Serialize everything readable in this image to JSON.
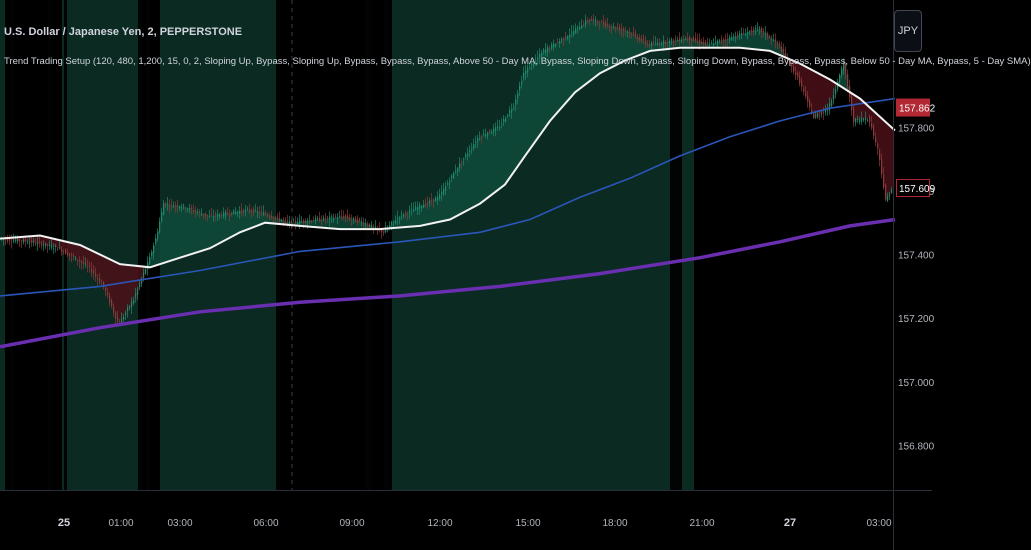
{
  "header": {
    "title": "U.S. Dollar / Japanese Yen, 2, PEPPERSTONE",
    "indicator": "Trend Trading Setup (120, 480, 1,200, 15, 0, 2, Sloping Up, Bypass, Sloping Up, Bypass, Bypass, Bypass, Above 50 - Day MA, Bypass, Sloping Down, Bypass, Sloping Down, Bypass, Bypass, Bypass, Below 50 - Day MA, Bypass, 5 - Day SMA)",
    "currency_button": "JPY"
  },
  "colors": {
    "background": "#000000",
    "green_zone": "#0a2a22",
    "bull_candle": "#1e8a6e",
    "bear_candle": "#8c3a3a",
    "fill_bull": "#0f4a3a",
    "fill_bear": "#4a1118",
    "ma_fast": "#f2f2f2",
    "ma_mid": "#2a56b8",
    "ma_slow": "#6a2fb0",
    "price_tag": "#b22833"
  },
  "chart_data": {
    "type": "line",
    "ylim": [
      156.66,
      158.2
    ],
    "y_ticks": [
      156.8,
      157.0,
      157.2,
      157.4,
      157.6,
      157.8
    ],
    "x_ticks": [
      {
        "label": "25",
        "bold": true
      },
      {
        "label": "01:00"
      },
      {
        "label": "03:00"
      },
      {
        "label": "06:00"
      },
      {
        "label": "09:00"
      },
      {
        "label": "12:00"
      },
      {
        "label": "15:00"
      },
      {
        "label": "18:00"
      },
      {
        "label": "21:00"
      },
      {
        "label": "27",
        "bold": true
      },
      {
        "label": "03:00"
      }
    ],
    "price_tags": [
      {
        "label": "157.862",
        "value": 157.862,
        "filled": true
      },
      {
        "label": "157.609",
        "value": 157.609,
        "filled": false
      }
    ],
    "price_path": [
      [
        0,
        157.45
      ],
      [
        30,
        157.44
      ],
      [
        60,
        157.42
      ],
      [
        90,
        157.36
      ],
      [
        105,
        157.3
      ],
      [
        120,
        157.18
      ],
      [
        135,
        157.26
      ],
      [
        150,
        157.38
      ],
      [
        158,
        157.46
      ],
      [
        165,
        157.56
      ],
      [
        185,
        157.55
      ],
      [
        210,
        157.52
      ],
      [
        230,
        157.53
      ],
      [
        250,
        157.54
      ],
      [
        265,
        157.53
      ],
      [
        290,
        157.5
      ],
      [
        320,
        157.51
      ],
      [
        345,
        157.52
      ],
      [
        365,
        157.5
      ],
      [
        385,
        157.47
      ],
      [
        400,
        157.52
      ],
      [
        420,
        157.55
      ],
      [
        440,
        157.58
      ],
      [
        460,
        157.68
      ],
      [
        480,
        157.77
      ],
      [
        500,
        157.8
      ],
      [
        515,
        157.87
      ],
      [
        525,
        157.97
      ],
      [
        545,
        158.04
      ],
      [
        570,
        158.09
      ],
      [
        590,
        158.14
      ],
      [
        610,
        158.12
      ],
      [
        630,
        158.1
      ],
      [
        650,
        158.06
      ],
      [
        670,
        158.07
      ],
      [
        690,
        158.08
      ],
      [
        710,
        158.06
      ],
      [
        730,
        158.08
      ],
      [
        760,
        158.11
      ],
      [
        780,
        158.06
      ],
      [
        800,
        157.95
      ],
      [
        815,
        157.83
      ],
      [
        830,
        157.86
      ],
      [
        845,
        158.0
      ],
      [
        855,
        157.82
      ],
      [
        870,
        157.83
      ],
      [
        880,
        157.72
      ],
      [
        887,
        157.57
      ],
      [
        895,
        157.62
      ]
    ],
    "series": [
      {
        "key": "ma_fast",
        "values": [
          [
            0,
            157.45
          ],
          [
            40,
            157.46
          ],
          [
            80,
            157.43
          ],
          [
            120,
            157.37
          ],
          [
            150,
            157.36
          ],
          [
            180,
            157.39
          ],
          [
            210,
            157.42
          ],
          [
            240,
            157.47
          ],
          [
            265,
            157.5
          ],
          [
            300,
            157.49
          ],
          [
            340,
            157.48
          ],
          [
            380,
            157.48
          ],
          [
            420,
            157.49
          ],
          [
            450,
            157.51
          ],
          [
            480,
            157.56
          ],
          [
            505,
            157.62
          ],
          [
            525,
            157.71
          ],
          [
            550,
            157.82
          ],
          [
            575,
            157.91
          ],
          [
            600,
            157.97
          ],
          [
            625,
            158.01
          ],
          [
            650,
            158.04
          ],
          [
            680,
            158.05
          ],
          [
            710,
            158.05
          ],
          [
            740,
            158.05
          ],
          [
            770,
            158.04
          ],
          [
            800,
            158.0
          ],
          [
            830,
            157.95
          ],
          [
            860,
            157.89
          ],
          [
            895,
            157.79
          ]
        ]
      },
      {
        "key": "ma_mid",
        "values": [
          [
            0,
            157.27
          ],
          [
            100,
            157.3
          ],
          [
            200,
            157.35
          ],
          [
            300,
            157.41
          ],
          [
            400,
            157.44
          ],
          [
            480,
            157.47
          ],
          [
            530,
            157.51
          ],
          [
            580,
            157.58
          ],
          [
            630,
            157.64
          ],
          [
            680,
            157.71
          ],
          [
            730,
            157.77
          ],
          [
            780,
            157.82
          ],
          [
            830,
            157.86
          ],
          [
            895,
            157.89
          ]
        ]
      },
      {
        "key": "ma_slow",
        "values": [
          [
            0,
            157.11
          ],
          [
            100,
            157.17
          ],
          [
            200,
            157.22
          ],
          [
            300,
            157.25
          ],
          [
            400,
            157.27
          ],
          [
            500,
            157.3
          ],
          [
            600,
            157.34
          ],
          [
            700,
            157.39
          ],
          [
            780,
            157.44
          ],
          [
            850,
            157.49
          ],
          [
            895,
            157.51
          ]
        ]
      }
    ]
  }
}
